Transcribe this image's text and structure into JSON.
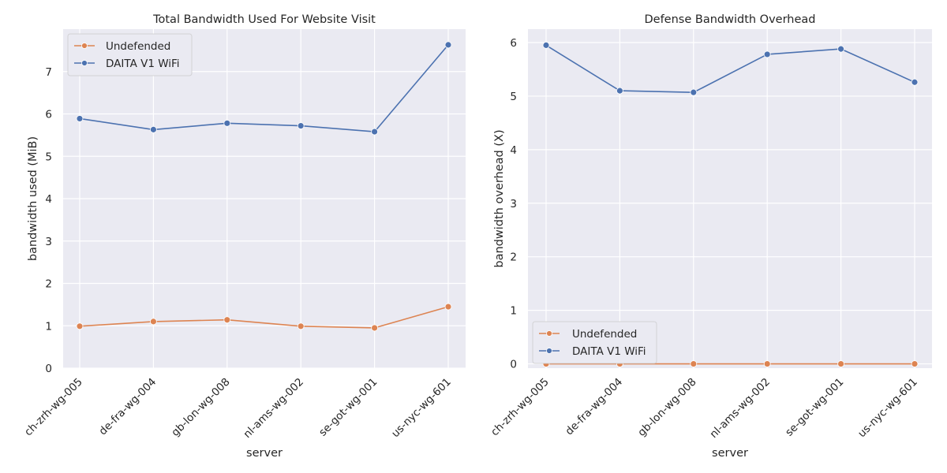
{
  "chart_data": [
    {
      "type": "line",
      "title": "Total Bandwidth Used For Website Visit",
      "xlabel": "server",
      "ylabel": "bandwidth used (MiB)",
      "categories": [
        "ch-zrh-wg-005",
        "de-fra-wg-004",
        "gb-lon-wg-008",
        "nl-ams-wg-002",
        "se-got-wg-001",
        "us-nyc-wg-601"
      ],
      "ylim": [
        0,
        8.0
      ],
      "yticks": [
        0,
        1,
        2,
        3,
        4,
        5,
        6,
        7
      ],
      "grid": true,
      "legend_position": "top-left",
      "series": [
        {
          "name": "Undefended",
          "color": "#dd8452",
          "values": [
            0.99,
            1.1,
            1.14,
            0.99,
            0.95,
            1.45
          ]
        },
        {
          "name": "DAITA V1 WiFi",
          "color": "#4c72b0",
          "values": [
            5.89,
            5.63,
            5.78,
            5.72,
            5.58,
            7.63
          ]
        }
      ]
    },
    {
      "type": "line",
      "title": "Defense Bandwidth Overhead",
      "xlabel": "server",
      "ylabel": "bandwidth overhead (X)",
      "categories": [
        "ch-zrh-wg-005",
        "de-fra-wg-004",
        "gb-lon-wg-008",
        "nl-ams-wg-002",
        "se-got-wg-001",
        "us-nyc-wg-601"
      ],
      "ylim": [
        -0.08,
        6.25
      ],
      "yticks": [
        0,
        1,
        2,
        3,
        4,
        5,
        6
      ],
      "grid": true,
      "legend_position": "bottom-left",
      "series": [
        {
          "name": "Undefended",
          "color": "#dd8452",
          "values": [
            0,
            0,
            0,
            0,
            0,
            0
          ]
        },
        {
          "name": "DAITA V1 WiFi",
          "color": "#4c72b0",
          "values": [
            5.95,
            5.1,
            5.07,
            5.78,
            5.88,
            5.26
          ]
        }
      ]
    }
  ]
}
